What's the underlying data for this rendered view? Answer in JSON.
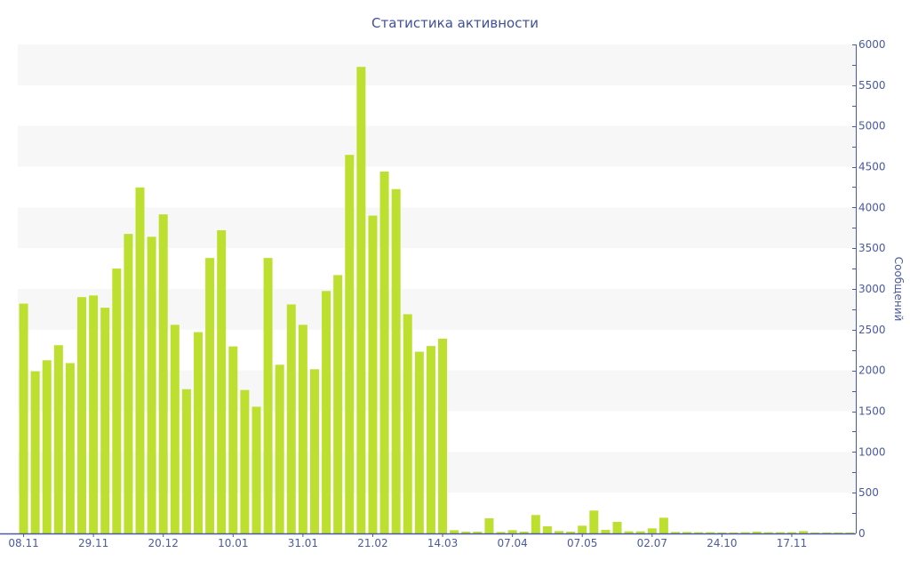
{
  "chart_data": {
    "type": "bar",
    "title": "Статистика активности",
    "xlabel": "",
    "ylabel": "Сообщений",
    "ylim": [
      0,
      6000
    ],
    "y_ticks": [
      0,
      500,
      1000,
      1500,
      2000,
      2500,
      3000,
      3500,
      4000,
      4500,
      5000,
      5500,
      6000
    ],
    "y_axis_position": "right",
    "grid": "alternating horizontal bands",
    "x_tick_labels": [
      {
        "index": 0,
        "label": "08.11"
      },
      {
        "index": 6,
        "label": "29.11"
      },
      {
        "index": 12,
        "label": "20.12"
      },
      {
        "index": 18,
        "label": "10.01"
      },
      {
        "index": 24,
        "label": "31.01"
      },
      {
        "index": 30,
        "label": "21.02"
      },
      {
        "index": 36,
        "label": "14.03"
      },
      {
        "index": 42,
        "label": "07.04"
      },
      {
        "index": 48,
        "label": "07.05"
      },
      {
        "index": 54,
        "label": "02.07"
      },
      {
        "index": 60,
        "label": "24.10"
      },
      {
        "index": 66,
        "label": "17.11"
      }
    ],
    "values": [
      2820,
      1990,
      2125,
      2310,
      2090,
      2900,
      2920,
      2770,
      3250,
      3675,
      4245,
      3640,
      3915,
      2560,
      1770,
      2470,
      3380,
      3720,
      2295,
      1760,
      1555,
      3380,
      2070,
      2810,
      2560,
      2015,
      2975,
      3170,
      4645,
      5725,
      3900,
      4440,
      4225,
      2690,
      2230,
      2300,
      2390,
      40,
      22,
      22,
      186,
      18,
      40,
      22,
      226,
      88,
      29,
      22,
      95,
      281,
      44,
      142,
      26,
      26,
      62,
      193,
      18,
      18,
      15,
      15,
      11,
      11,
      15,
      22,
      15,
      15,
      15,
      29,
      11,
      11,
      11,
      11
    ],
    "colors": {
      "bar": "#bde030",
      "axis": "#4a5a9e",
      "band": "#f7f7f7",
      "title": "#3e4f9c"
    }
  }
}
